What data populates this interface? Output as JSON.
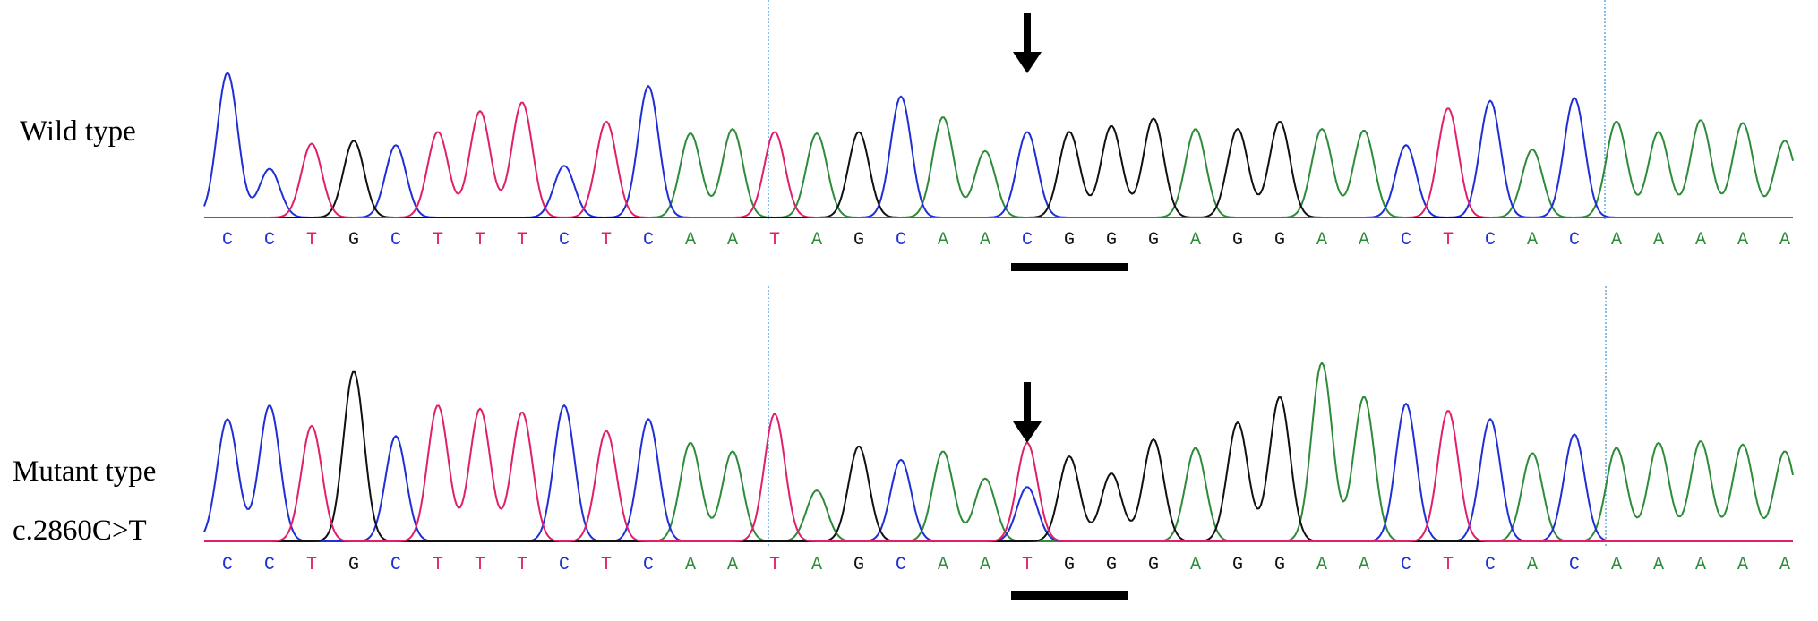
{
  "colors": {
    "A": "#2e8b3a",
    "C": "#1f2fd6",
    "G": "#111111",
    "T": "#e0206a",
    "marker_line": "#5aa9e6",
    "annotation": "#000000"
  },
  "panels": [
    {
      "id": "wild",
      "labels": [
        "Wild type"
      ],
      "sequence": [
        "C",
        "C",
        "T",
        "G",
        "C",
        "T",
        "T",
        "T",
        "C",
        "T",
        "C",
        "A",
        "A",
        "T",
        "A",
        "G",
        "C",
        "A",
        "A",
        "C",
        "G",
        "G",
        "G",
        "A",
        "G",
        "G",
        "A",
        "A",
        "C",
        "T",
        "C",
        "A",
        "C",
        "A",
        "A",
        "A",
        "A",
        "A"
      ],
      "peak_heights": [
        0.98,
        0.33,
        0.5,
        0.52,
        0.49,
        0.58,
        0.72,
        0.78,
        0.35,
        0.65,
        0.89,
        0.57,
        0.6,
        0.58,
        0.57,
        0.58,
        0.82,
        0.68,
        0.45,
        0.58,
        0.58,
        0.62,
        0.67,
        0.6,
        0.6,
        0.65,
        0.6,
        0.59,
        0.49,
        0.74,
        0.79,
        0.46,
        0.81,
        0.65,
        0.58,
        0.66,
        0.64,
        0.52
      ],
      "secondary_peaks": [],
      "mutation_index": 19,
      "underline_span": [
        19,
        21
      ]
    },
    {
      "id": "mutant",
      "labels": [
        "Mutant type",
        "c.2860C>T"
      ],
      "sequence": [
        "C",
        "C",
        "T",
        "G",
        "C",
        "T",
        "T",
        "T",
        "C",
        "T",
        "C",
        "A",
        "A",
        "T",
        "A",
        "G",
        "C",
        "A",
        "A",
        "T",
        "G",
        "G",
        "G",
        "A",
        "G",
        "G",
        "A",
        "A",
        "C",
        "T",
        "C",
        "A",
        "C",
        "A",
        "A",
        "A",
        "A",
        "A"
      ],
      "peak_heights": [
        0.72,
        0.8,
        0.68,
        1.0,
        0.62,
        0.8,
        0.78,
        0.76,
        0.8,
        0.65,
        0.72,
        0.58,
        0.53,
        0.75,
        0.3,
        0.56,
        0.48,
        0.53,
        0.37,
        0.58,
        0.5,
        0.4,
        0.6,
        0.55,
        0.7,
        0.85,
        1.05,
        0.85,
        0.81,
        0.77,
        0.72,
        0.52,
        0.63,
        0.55,
        0.58,
        0.59,
        0.57,
        0.53
      ],
      "secondary_peaks": [
        {
          "index": 19,
          "base": "C",
          "height": 0.32
        }
      ],
      "mutation_index": 19,
      "underline_span": [
        19,
        21
      ]
    }
  ]
}
